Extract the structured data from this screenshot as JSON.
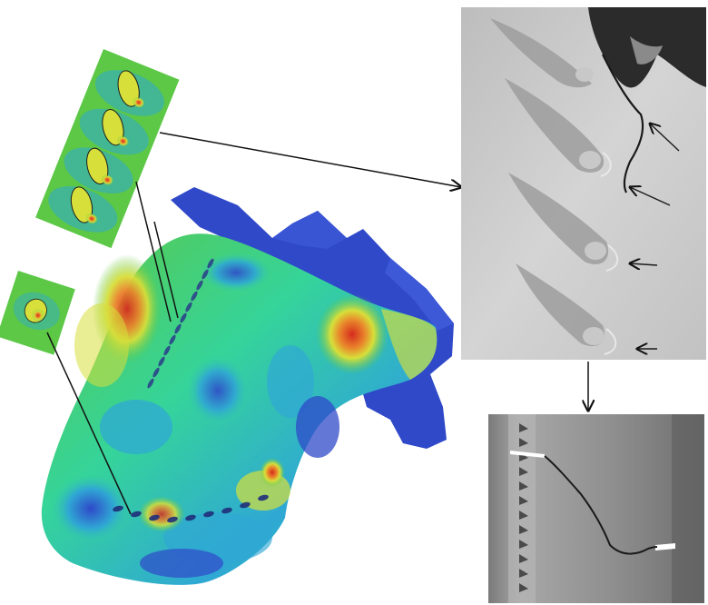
{
  "figure": {
    "kind": "engineering comparison figure",
    "panels": [
      "fea-stress-contour-turbine-blade",
      "fea-zoom-cooling-holes",
      "fea-zoom-single-hole",
      "photo-cracked-cooling-holes",
      "photo-cracked-blade-surface"
    ]
  },
  "colors": {
    "contour_low": "#2f49c9",
    "contour_cool": "#2fa8d4",
    "contour_mid_low": "#35d49a",
    "contour_mid": "#5cc846",
    "contour_mid_high": "#d7df3a",
    "contour_high": "#e9862b",
    "contour_max": "#d52b1e",
    "photo_gray_light": "#cfcfcf",
    "photo_gray_mid": "#9e9e9e",
    "photo_gray_dark": "#2b2b2b",
    "leader_line": "#111111"
  },
  "icons": {
    "arrow": "arrowhead-icon"
  }
}
